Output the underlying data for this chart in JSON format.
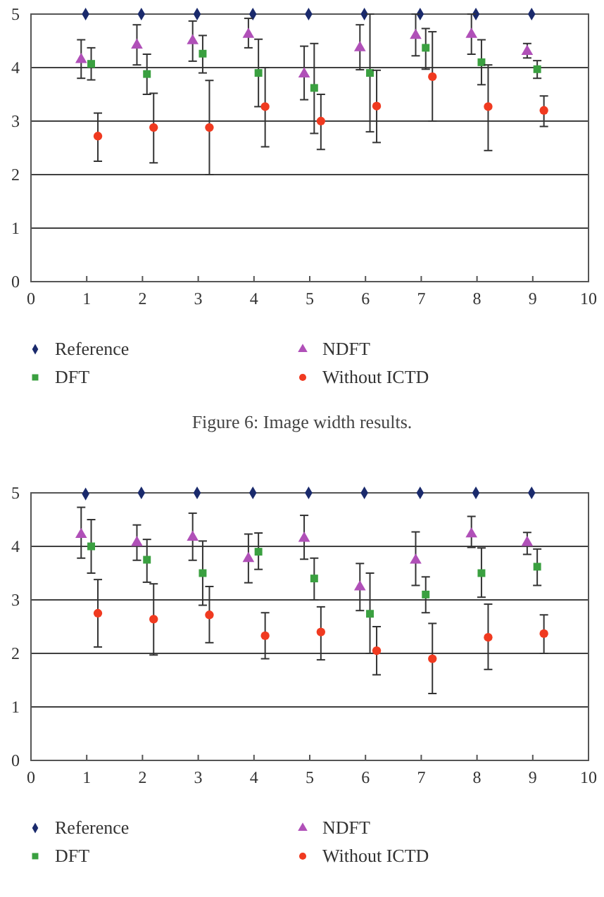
{
  "chart_data": [
    {
      "type": "scatter",
      "annotations": [
        "Figure 6: Image width results."
      ],
      "xlim": [
        0,
        10
      ],
      "xticks": [
        0,
        1,
        2,
        3,
        4,
        5,
        6,
        7,
        8,
        9,
        10
      ],
      "ylim": [
        0,
        5
      ],
      "yticks": [
        0,
        1,
        2,
        3,
        4,
        5
      ],
      "grid": "y",
      "legend": "bottom",
      "series": [
        {
          "name": "Reference",
          "color": "#1a2a6c",
          "marker": "diamond",
          "x": [
            0.98,
            1.98,
            2.98,
            3.98,
            4.98,
            5.98,
            6.98,
            7.98,
            8.98
          ],
          "values": [
            5,
            5,
            5,
            5,
            5,
            5,
            5,
            5,
            5
          ]
        },
        {
          "name": "NDFT",
          "color": "#b050b8",
          "marker": "triangle",
          "x": [
            0.9,
            1.9,
            2.9,
            3.9,
            4.9,
            5.9,
            6.9,
            7.9,
            8.9
          ],
          "values": [
            4.15,
            4.42,
            4.5,
            4.62,
            3.88,
            4.37,
            4.6,
            4.62,
            4.3
          ],
          "errors": [
            [
              3.8,
              4.52
            ],
            [
              4.05,
              4.8
            ],
            [
              4.12,
              4.87
            ],
            [
              4.37,
              4.92
            ],
            [
              3.4,
              4.4
            ],
            [
              3.96,
              4.8
            ],
            [
              4.22,
              5
            ],
            [
              4.25,
              5
            ],
            [
              4.18,
              4.45
            ]
          ]
        },
        {
          "name": "DFT",
          "color": "#3aa040",
          "marker": "square",
          "x": [
            1.08,
            2.08,
            3.08,
            4.08,
            5.08,
            6.08,
            7.08,
            8.08,
            9.08
          ],
          "values": [
            4.07,
            3.88,
            4.26,
            3.9,
            3.62,
            3.9,
            4.37,
            4.1,
            3.97
          ],
          "errors": [
            [
              3.77,
              4.37
            ],
            [
              3.5,
              4.25
            ],
            [
              3.9,
              4.6
            ],
            [
              3.27,
              4.53
            ],
            [
              2.77,
              4.45
            ],
            [
              2.8,
              5
            ],
            [
              3.97,
              4.73
            ],
            [
              3.68,
              4.52
            ],
            [
              3.8,
              4.13
            ]
          ]
        },
        {
          "name": "Without ICTD",
          "color": "#f03a20",
          "marker": "circle",
          "x": [
            1.2,
            2.2,
            3.2,
            4.2,
            5.2,
            6.2,
            7.2,
            8.2,
            9.2
          ],
          "values": [
            2.72,
            2.88,
            2.88,
            3.27,
            3,
            3.28,
            3.83,
            3.27,
            3.2
          ],
          "errors": [
            [
              2.25,
              3.15
            ],
            [
              2.22,
              3.52
            ],
            [
              2,
              3.76
            ],
            [
              2.52,
              4
            ],
            [
              2.47,
              3.5
            ],
            [
              2.6,
              3.95
            ],
            [
              3,
              4.67
            ],
            [
              2.45,
              4.05
            ],
            [
              2.9,
              3.47
            ]
          ]
        }
      ]
    },
    {
      "type": "scatter",
      "xlim": [
        0,
        10
      ],
      "xticks": [
        0,
        1,
        2,
        3,
        4,
        5,
        6,
        7,
        8,
        9,
        10
      ],
      "ylim": [
        0,
        5
      ],
      "yticks": [
        0,
        1,
        2,
        3,
        4,
        5
      ],
      "grid": "y",
      "legend": "bottom",
      "series": [
        {
          "name": "Reference",
          "color": "#1a2a6c",
          "marker": "diamond",
          "x": [
            0.98,
            1.98,
            2.98,
            3.98,
            4.98,
            5.98,
            6.98,
            7.98,
            8.98
          ],
          "values": [
            4.98,
            5,
            5,
            5,
            5,
            5,
            5,
            5,
            5
          ]
        },
        {
          "name": "NDFT",
          "color": "#b050b8",
          "marker": "triangle",
          "x": [
            0.9,
            1.9,
            2.9,
            3.9,
            4.9,
            5.9,
            6.9,
            7.9,
            8.9
          ],
          "values": [
            4.22,
            4.07,
            4.17,
            3.77,
            4.15,
            3.24,
            3.74,
            4.23,
            4.07
          ],
          "errors": [
            [
              3.78,
              4.73
            ],
            [
              3.74,
              4.4
            ],
            [
              3.74,
              4.62
            ],
            [
              3.32,
              4.23
            ],
            [
              3.76,
              4.58
            ],
            [
              2.8,
              3.68
            ],
            [
              3.27,
              4.27
            ],
            [
              3.98,
              4.56
            ],
            [
              3.85,
              4.26
            ]
          ]
        },
        {
          "name": "DFT",
          "color": "#3aa040",
          "marker": "square",
          "x": [
            1.08,
            2.08,
            3.08,
            4.08,
            5.08,
            6.08,
            7.08,
            8.08,
            9.08
          ],
          "values": [
            4,
            3.75,
            3.5,
            3.9,
            3.4,
            2.74,
            3.1,
            3.5,
            3.62
          ],
          "errors": [
            [
              3.5,
              4.5
            ],
            [
              3.33,
              4.13
            ],
            [
              2.9,
              4.1
            ],
            [
              3.57,
              4.25
            ],
            [
              3,
              3.78
            ],
            [
              2,
              3.5
            ],
            [
              2.76,
              3.43
            ],
            [
              3.05,
              3.97
            ],
            [
              3.27,
              3.95
            ]
          ]
        },
        {
          "name": "Without ICTD",
          "color": "#f03a20",
          "marker": "circle",
          "x": [
            1.2,
            2.2,
            3.2,
            4.2,
            5.2,
            6.2,
            7.2,
            8.2,
            9.2
          ],
          "values": [
            2.75,
            2.64,
            2.72,
            2.33,
            2.4,
            2.05,
            1.9,
            2.3,
            2.37
          ],
          "errors": [
            [
              2.12,
              3.38
            ],
            [
              1.97,
              3.3
            ],
            [
              2.2,
              3.25
            ],
            [
              1.9,
              2.76
            ],
            [
              1.88,
              2.87
            ],
            [
              1.6,
              2.5
            ],
            [
              1.25,
              2.56
            ],
            [
              1.7,
              2.92
            ],
            [
              2,
              2.72
            ]
          ]
        }
      ]
    }
  ]
}
